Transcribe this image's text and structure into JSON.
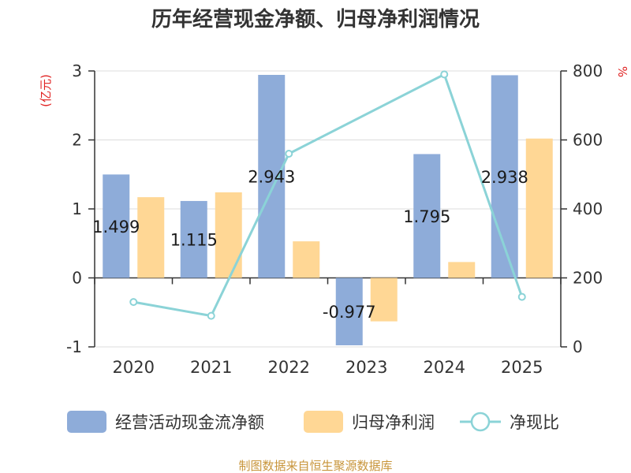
{
  "chart_data": {
    "type": "bar+line",
    "title": "历年经营现金净额、归母净利润情况",
    "categories": [
      "2020",
      "2021",
      "2022",
      "2023",
      "2024",
      "2025"
    ],
    "left_axis": {
      "unit_label": "(亿元)",
      "range": [
        -1,
        3
      ],
      "ticks": [
        "-1",
        "0",
        "1",
        "2",
        "3"
      ]
    },
    "right_axis": {
      "unit_label": "%",
      "range": [
        0,
        800
      ],
      "ticks": [
        "0",
        "200",
        "400",
        "600",
        "800"
      ]
    },
    "series": [
      {
        "name": "经营活动现金流净额",
        "type": "bar",
        "axis": "left",
        "values": [
          1.499,
          1.115,
          2.943,
          -0.977,
          1.795,
          2.938
        ],
        "labels": [
          "1.499",
          "1.115",
          "2.943",
          "-0.977",
          "1.795",
          "2.938"
        ]
      },
      {
        "name": "归母净利润",
        "type": "bar",
        "axis": "left",
        "values": [
          1.17,
          1.24,
          0.53,
          -0.63,
          0.23,
          2.02
        ]
      },
      {
        "name": "净现比",
        "type": "line",
        "axis": "right",
        "values": [
          130,
          90,
          560,
          null,
          790,
          145
        ]
      }
    ],
    "colors": {
      "cash": "#8eacd9",
      "profit": "#ffd795",
      "ratio": "#8bd3d7",
      "unit_text": "#e02020",
      "source_text": "#c8953b"
    },
    "source": "制图数据来自恒生聚源数据库"
  }
}
